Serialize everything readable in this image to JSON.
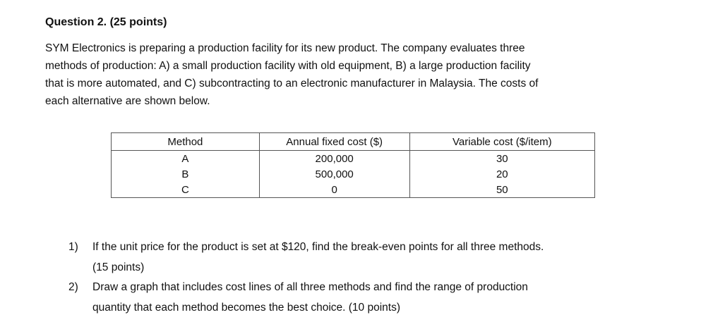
{
  "heading": "Question 2. (25 points)",
  "intro": {
    "lines": [
      "SYM Electronics is preparing a production facility for its new product. The company evaluates three",
      "methods of production: A) a small production facility with old equipment, B) a large production facility",
      "that is more automated, and C) subcontracting to an electronic manufacturer in Malaysia. The costs of",
      "each alternative are shown below."
    ]
  },
  "table": {
    "header": [
      "Method",
      "Annual fixed cost ($)",
      "Variable cost ($/item)"
    ],
    "rows": [
      [
        "A",
        "200,000",
        "30"
      ],
      [
        "B",
        "500,000",
        "20"
      ],
      [
        "C",
        "0",
        "50"
      ]
    ]
  },
  "questions": [
    {
      "number": "1)",
      "lines": [
        "If the unit price for the product is set at $120, find the break-even points for all three methods.",
        "(15 points)"
      ]
    },
    {
      "number": "2)",
      "lines": [
        "Draw a graph that includes cost lines of all three methods and find the range of production",
        "quantity that each method becomes the best choice. (10 points)"
      ]
    }
  ]
}
